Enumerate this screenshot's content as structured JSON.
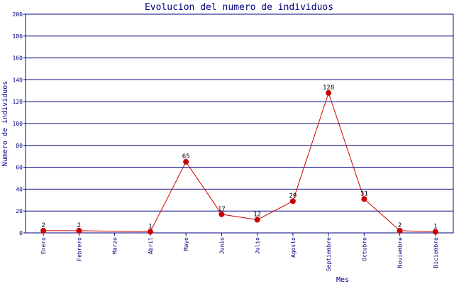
{
  "chart_data": {
    "type": "line",
    "title": "Evolucion del numero de individuos",
    "xlabel": "Mes",
    "ylabel": "Numero de individuos",
    "categories": [
      "Enero",
      "Febrero",
      "Marzo",
      "Abril",
      "Mayo",
      "Junio",
      "Julio",
      "Agosto",
      "Septiembre",
      "Octubre",
      "Noviembre",
      "Diciembre"
    ],
    "series": [
      {
        "values": [
          2,
          2,
          null,
          1,
          65,
          17,
          12,
          29,
          128,
          31,
          2,
          1
        ]
      }
    ],
    "data_labels": [
      "2",
      "2",
      "",
      "1",
      "65",
      "17",
      "12",
      "29",
      "128",
      "31",
      "2",
      "1"
    ],
    "ylim": [
      0,
      200
    ],
    "yticks": [
      0,
      20,
      40,
      60,
      80,
      100,
      120,
      140,
      160,
      180,
      200
    ],
    "grid": true,
    "colors": {
      "axis": "#000080",
      "grid": "#000080",
      "line": "#cc0000",
      "marker": "#cc0000"
    }
  }
}
